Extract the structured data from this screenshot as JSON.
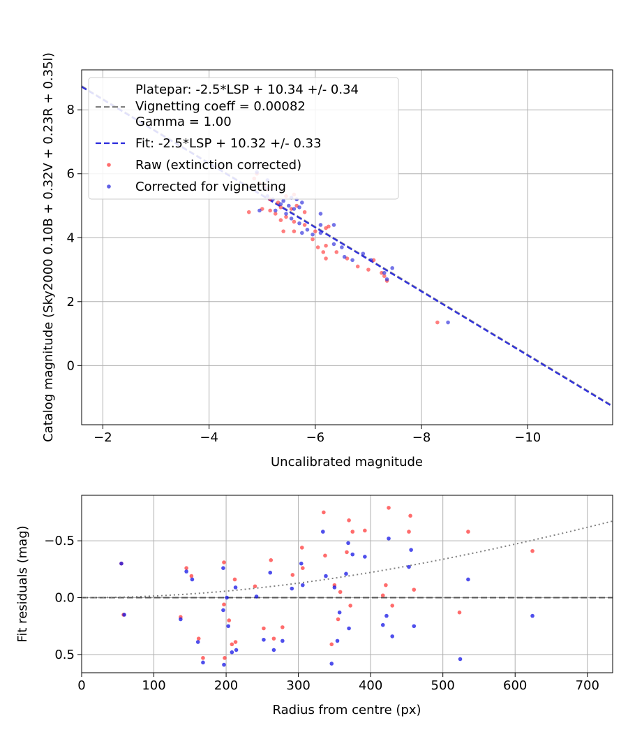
{
  "chart_data": [
    {
      "type": "scatter",
      "xlabel": "Uncalibrated magnitude",
      "ylabel": "Catalog magnitude (Sky2000 0.10B + 0.32V + 0.23R + 0.35I)",
      "xlim": [
        -1.6,
        -11.6
      ],
      "ylim": [
        9.25,
        -1.85
      ],
      "x_ticks": [
        -2,
        -4,
        -6,
        -8,
        -10
      ],
      "x_tick_labels": [
        "−2",
        "−4",
        "−6",
        "−8",
        "−10"
      ],
      "y_ticks": [
        0,
        2,
        4,
        6,
        8
      ],
      "y_tick_labels": [
        "0",
        "2",
        "4",
        "6",
        "8"
      ],
      "grid": true,
      "legend_position": "top-left",
      "legend": {
        "platepar_lines": [
          "Platepar: -2.5*LSP + 10.34 +/- 0.34",
          "Vignetting coeff = 0.00082",
          "Gamma = 1.00"
        ],
        "fit_label": "Fit: -2.5*LSP + 10.32 +/- 0.33",
        "raw_label": "Raw (extinction corrected)",
        "corrected_label": "Corrected for vignetting"
      },
      "lines": [
        {
          "name": "Platepar",
          "intercept": 10.34,
          "style": "dashed",
          "color": "#808080"
        },
        {
          "name": "Fit",
          "intercept": 10.32,
          "style": "dashed",
          "color": "#2a2adc"
        }
      ],
      "series": [
        {
          "name": "Raw (extinction corrected)",
          "color": "#ff3b3b",
          "points": [
            [
              -8.3,
              1.35
            ],
            [
              -7.35,
              2.65
            ],
            [
              -7.3,
              2.8
            ],
            [
              -7.25,
              2.9
            ],
            [
              -7.0,
              3.0
            ],
            [
              -6.8,
              3.1
            ],
            [
              -7.1,
              3.3
            ],
            [
              -6.6,
              3.35
            ],
            [
              -6.2,
              3.35
            ],
            [
              -6.4,
              3.55
            ],
            [
              -6.15,
              3.55
            ],
            [
              -6.05,
              3.7
            ],
            [
              -6.2,
              3.75
            ],
            [
              -5.95,
              3.95
            ],
            [
              -6.0,
              4.2
            ],
            [
              -6.2,
              4.3
            ],
            [
              -6.25,
              4.35
            ],
            [
              -5.4,
              4.2
            ],
            [
              -5.6,
              4.2
            ],
            [
              -5.8,
              4.4
            ],
            [
              -5.6,
              4.5
            ],
            [
              -5.35,
              4.55
            ],
            [
              -5.45,
              4.65
            ],
            [
              -5.25,
              4.75
            ],
            [
              -5.15,
              4.85
            ],
            [
              -5.35,
              4.95
            ],
            [
              -4.75,
              4.8
            ],
            [
              -5.0,
              4.9
            ],
            [
              -5.55,
              4.9
            ],
            [
              -5.65,
              5.0
            ],
            [
              -5.3,
              5.1
            ],
            [
              -5.15,
              5.2
            ],
            [
              -5.45,
              5.3
            ],
            [
              -5.6,
              5.35
            ],
            [
              -5.1,
              5.5
            ],
            [
              -5.05,
              5.6
            ],
            [
              -4.95,
              5.7
            ],
            [
              -4.85,
              5.85
            ],
            [
              -4.9,
              6.0
            ],
            [
              -5.8,
              4.8
            ]
          ]
        },
        {
          "name": "Corrected for vignetting",
          "color": "#2a2adc",
          "points": [
            [
              -8.5,
              1.35
            ],
            [
              -7.35,
              2.7
            ],
            [
              -7.3,
              2.9
            ],
            [
              -7.45,
              3.05
            ],
            [
              -7.05,
              3.3
            ],
            [
              -6.9,
              3.5
            ],
            [
              -6.7,
              3.3
            ],
            [
              -6.55,
              3.4
            ],
            [
              -6.5,
              3.7
            ],
            [
              -6.35,
              3.8
            ],
            [
              -6.1,
              4.15
            ],
            [
              -5.95,
              4.1
            ],
            [
              -6.35,
              4.4
            ],
            [
              -6.1,
              4.4
            ],
            [
              -5.75,
              4.15
            ],
            [
              -5.85,
              4.25
            ],
            [
              -5.7,
              4.45
            ],
            [
              -6.1,
              4.75
            ],
            [
              -5.55,
              4.6
            ],
            [
              -5.45,
              4.75
            ],
            [
              -4.95,
              4.85
            ],
            [
              -5.25,
              4.85
            ],
            [
              -5.6,
              4.9
            ],
            [
              -5.7,
              4.95
            ],
            [
              -5.5,
              5.0
            ],
            [
              -5.75,
              5.1
            ],
            [
              -5.4,
              5.15
            ],
            [
              -5.55,
              5.25
            ],
            [
              -5.2,
              5.2
            ],
            [
              -5.1,
              5.3
            ],
            [
              -5.05,
              5.55
            ],
            [
              -5.1,
              5.8
            ],
            [
              -4.9,
              6.05
            ],
            [
              -5.65,
              5.2
            ],
            [
              -5.35,
              5.05
            ]
          ]
        }
      ]
    },
    {
      "type": "scatter",
      "xlabel": "Radius from centre (px)",
      "ylabel": "Fit residuals (mag)",
      "xlim": [
        0,
        735
      ],
      "ylim": [
        -0.9,
        0.66
      ],
      "x_ticks": [
        0,
        100,
        200,
        300,
        400,
        500,
        600,
        700
      ],
      "x_tick_labels": [
        "0",
        "100",
        "200",
        "300",
        "400",
        "500",
        "600",
        "700"
      ],
      "y_ticks": [
        0.5,
        0.0,
        -0.5
      ],
      "y_tick_labels": [
        "0.5",
        "0.0",
        "−0.5"
      ],
      "grid": true,
      "lines": [
        {
          "name": "zero",
          "style": "dashed",
          "color": "#555555"
        },
        {
          "name": "vignetting model",
          "coeff": 0.00082,
          "style": "dotted",
          "color": "#808080"
        }
      ],
      "series": [
        {
          "name": "Raw (extinction corrected)",
          "color": "#ff3b3b",
          "points": [
            [
              55,
              -0.3
            ],
            [
              58,
              0.15
            ],
            [
              137,
              0.17
            ],
            [
              145,
              -0.26
            ],
            [
              152,
              -0.19
            ],
            [
              162,
              0.36
            ],
            [
              168,
              0.53
            ],
            [
              197,
              -0.31
            ],
            [
              197,
              0.06
            ],
            [
              198,
              0.53
            ],
            [
              204,
              0.2
            ],
            [
              208,
              0.41
            ],
            [
              213,
              0.39
            ],
            [
              212,
              -0.16
            ],
            [
              240,
              -0.1
            ],
            [
              252,
              0.27
            ],
            [
              262,
              -0.33
            ],
            [
              266,
              0.36
            ],
            [
              278,
              0.26
            ],
            [
              292,
              -0.2
            ],
            [
              305,
              -0.44
            ],
            [
              306,
              -0.26
            ],
            [
              335,
              -0.75
            ],
            [
              337,
              -0.37
            ],
            [
              346,
              0.41
            ],
            [
              350,
              -0.11
            ],
            [
              355,
              0.19
            ],
            [
              358,
              -0.05
            ],
            [
              367,
              -0.4
            ],
            [
              370,
              -0.68
            ],
            [
              372,
              0.07
            ],
            [
              375,
              -0.58
            ],
            [
              392,
              -0.59
            ],
            [
              417,
              -0.02
            ],
            [
              421,
              -0.11
            ],
            [
              425,
              -0.79
            ],
            [
              430,
              0.07
            ],
            [
              453,
              -0.58
            ],
            [
              455,
              -0.72
            ],
            [
              460,
              -0.07
            ],
            [
              523,
              0.13
            ],
            [
              535,
              -0.58
            ],
            [
              624,
              -0.41
            ]
          ]
        },
        {
          "name": "Corrected for vignetting",
          "color": "#1414e6",
          "points": [
            [
              55,
              -0.3
            ],
            [
              59,
              0.15
            ],
            [
              137,
              0.19
            ],
            [
              145,
              -0.23
            ],
            [
              153,
              -0.16
            ],
            [
              161,
              0.39
            ],
            [
              168,
              0.57
            ],
            [
              196,
              -0.26
            ],
            [
              196,
              0.11
            ],
            [
              197,
              0.59
            ],
            [
              201,
              0.0
            ],
            [
              203,
              0.25
            ],
            [
              208,
              0.48
            ],
            [
              214,
              0.46
            ],
            [
              213,
              -0.09
            ],
            [
              242,
              -0.01
            ],
            [
              252,
              0.37
            ],
            [
              261,
              -0.22
            ],
            [
              266,
              0.46
            ],
            [
              278,
              0.38
            ],
            [
              291,
              -0.08
            ],
            [
              304,
              -0.3
            ],
            [
              306,
              -0.11
            ],
            [
              334,
              -0.58
            ],
            [
              338,
              -0.19
            ],
            [
              346,
              0.58
            ],
            [
              350,
              -0.09
            ],
            [
              354,
              0.38
            ],
            [
              357,
              0.13
            ],
            [
              366,
              -0.21
            ],
            [
              369,
              -0.48
            ],
            [
              370,
              0.27
            ],
            [
              375,
              -0.38
            ],
            [
              392,
              -0.36
            ],
            [
              417,
              0.24
            ],
            [
              422,
              0.16
            ],
            [
              425,
              -0.52
            ],
            [
              430,
              0.34
            ],
            [
              453,
              -0.27
            ],
            [
              456,
              -0.42
            ],
            [
              460,
              0.25
            ],
            [
              524,
              0.54
            ],
            [
              535,
              -0.16
            ],
            [
              624,
              0.16
            ]
          ]
        }
      ]
    }
  ]
}
